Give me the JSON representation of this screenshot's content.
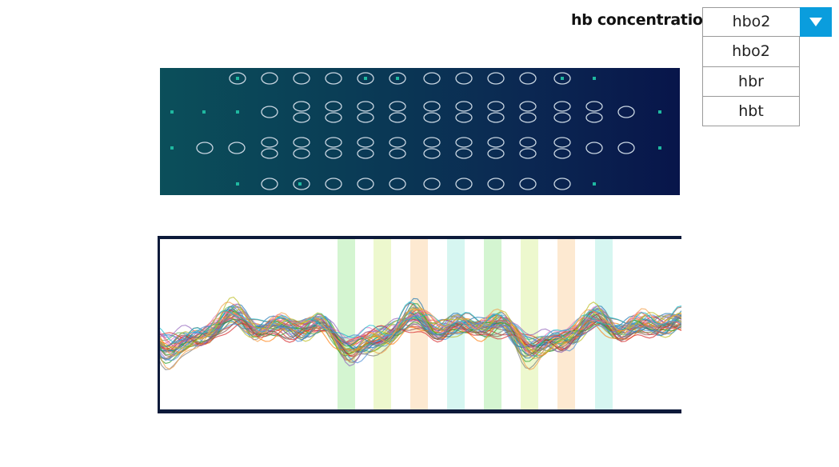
{
  "control": {
    "label": "hb concentration",
    "selected": "hbo2",
    "options": [
      "hbo2",
      "hbr",
      "hbt"
    ],
    "accent_color": "#0a9ddd"
  },
  "icons": {
    "dropdown": "caret-down-icon"
  },
  "topo_map": {
    "background": [
      "#0b4f5a",
      "#08154a"
    ]
  },
  "timeseries": {
    "band_colors": [
      "#cdf3c9",
      "#eaf7c6",
      "#fde5c9",
      "#cff4ee"
    ]
  }
}
